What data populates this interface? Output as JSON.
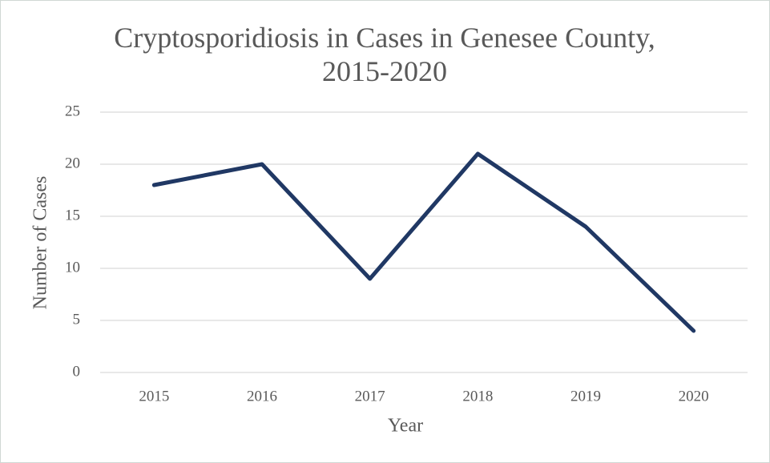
{
  "chart_data": {
    "type": "line",
    "title": "Cryptosporidiosis in Cases in Genesee County, 2015-2020",
    "x_label": "Year",
    "y_label": "Number of Cases",
    "categories": [
      "2015",
      "2016",
      "2017",
      "2018",
      "2019",
      "2020"
    ],
    "series": [
      {
        "name": "Cases",
        "color": "#203864",
        "values": [
          18,
          20,
          9,
          21,
          14,
          4
        ]
      }
    ],
    "ylim": [
      0,
      25
    ],
    "yticks": [
      0,
      5,
      10,
      15,
      20,
      25
    ],
    "grid": true
  }
}
